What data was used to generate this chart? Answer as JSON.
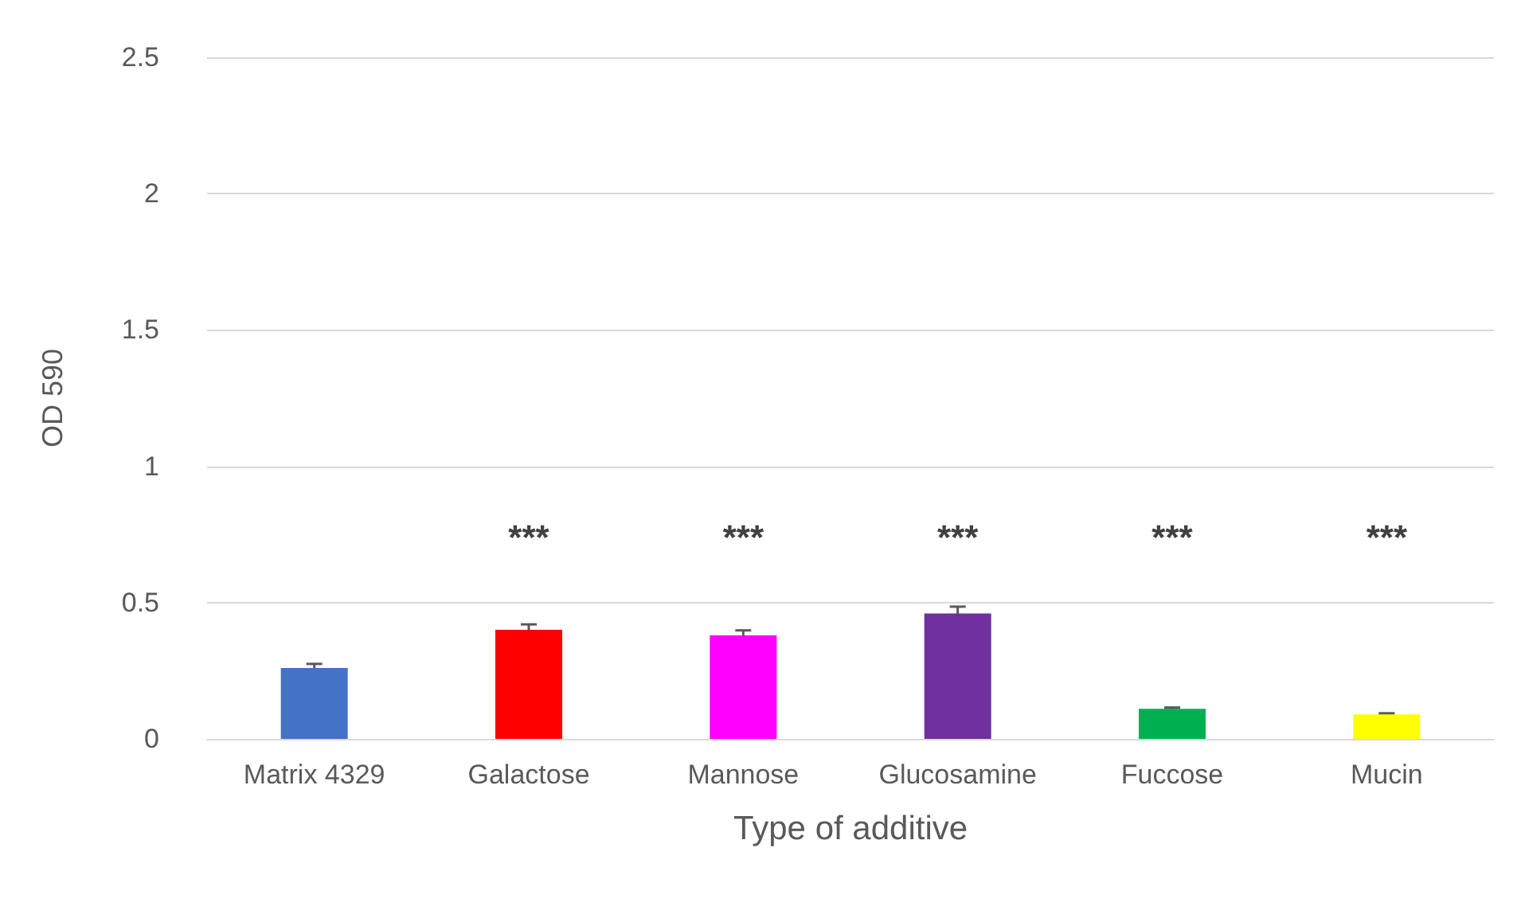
{
  "chart_data": {
    "type": "bar",
    "xlabel": "Type of additive",
    "ylabel": "OD 590",
    "categories": [
      "Matrix 4329",
      "Galactose",
      "Mannose",
      "Glucosamine",
      "Fuccose",
      "Mucin"
    ],
    "values": [
      0.26,
      0.4,
      0.38,
      0.46,
      0.11,
      0.09
    ],
    "colors": [
      "#4472c4",
      "#ff0000",
      "#ff00ff",
      "#7030a0",
      "#00b050",
      "#ffff00"
    ],
    "errors": [
      0.015,
      0.02,
      0.018,
      0.025,
      0.005,
      0.004
    ],
    "ylim": [
      0,
      2.5
    ],
    "yticks": [
      0,
      0.5,
      1,
      1.5,
      2,
      2.5
    ],
    "grid": "y",
    "annotations": [
      "***",
      "***",
      "***",
      "***",
      "***"
    ]
  }
}
